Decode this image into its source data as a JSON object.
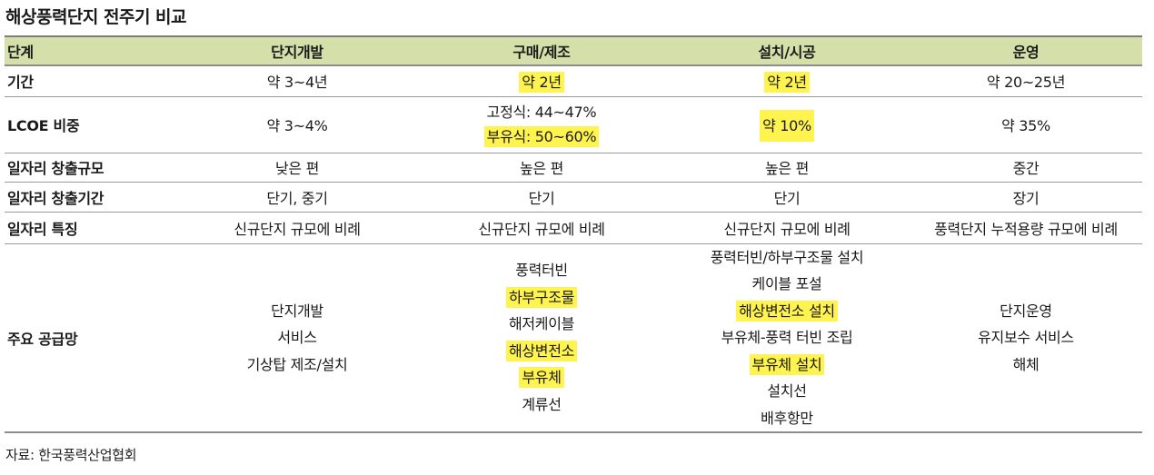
{
  "title": "해상풍력단지 전주기 비교",
  "colors": {
    "header_bg": "#d5dfa9",
    "highlight": "#fff44f"
  },
  "table": {
    "headers": [
      "단계",
      "단지개발",
      "구매/제조",
      "설치/시공",
      "운영"
    ],
    "rows": {
      "period": {
        "label": "기간",
        "cells": [
          "약 3~4년",
          "약 2년",
          "약 2년",
          "약 20~25년"
        ]
      },
      "lcoe": {
        "label": "LCOE 비중",
        "dev": "약 3~4%",
        "purchase": [
          "고정식: 44~47%",
          "부유식: 50~60%"
        ],
        "install": "약 10%",
        "operate": "약 35%"
      },
      "job_scale": {
        "label": "일자리 창출규모",
        "cells": [
          "낮은 편",
          "높은 편",
          "높은 편",
          "중간"
        ]
      },
      "job_period": {
        "label": "일자리 창출기간",
        "cells": [
          "단기, 중기",
          "단기",
          "단기",
          "장기"
        ]
      },
      "job_feature": {
        "label": "일자리 특징",
        "cells": [
          "신규단지 규모에 비례",
          "신규단지 규모에 비례",
          "신규단지 규모에 비례",
          "풍력단지 누적용량 규모에 비례"
        ]
      },
      "supply": {
        "label": "주요 공급망",
        "dev": [
          "단지개발",
          "서비스",
          "기상탑 제조/설치"
        ],
        "purchase": [
          "풍력터빈",
          "하부구조물",
          "해저케이블",
          "해상변전소",
          "부유체",
          "계류선"
        ],
        "install": [
          "풍력터빈/하부구조물 설치",
          "케이블 포설",
          "해상변전소 설치",
          "부유체-풍력 터빈 조립",
          "부유체 설치",
          "설치선",
          "배후항만"
        ],
        "operate": [
          "단지운영",
          "유지보수 서비스",
          "해체"
        ]
      }
    }
  },
  "source": "자료: 한국풍력산업협회"
}
